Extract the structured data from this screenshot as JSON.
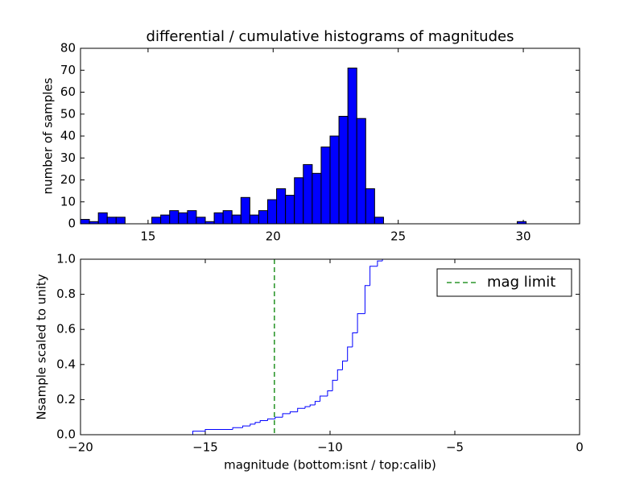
{
  "chart_data": [
    {
      "type": "histogram",
      "title": "differential / cumulative histograms of magnitudes",
      "y_label": "number of samples",
      "bins": [
        12.3,
        12.656,
        13.013,
        13.369,
        13.725,
        14.081,
        14.438,
        14.794,
        15.15,
        15.506,
        15.863,
        16.219,
        16.575,
        16.931,
        17.288,
        17.644,
        18.0,
        18.356,
        18.713,
        19.069,
        19.425,
        19.781,
        20.138,
        20.494,
        20.85,
        21.206,
        21.563,
        21.919,
        22.275,
        22.631,
        22.988,
        23.344,
        23.7,
        24.056,
        24.413,
        24.769,
        25.125,
        25.481,
        25.838,
        26.194,
        26.55,
        26.906,
        27.263,
        27.619,
        27.975,
        28.331,
        28.688,
        29.044,
        29.4,
        29.756,
        30.113,
        30.469,
        30.825,
        31.181,
        31.538,
        31.894,
        32.25
      ],
      "values": [
        2,
        1,
        5,
        3,
        3,
        0,
        0,
        0,
        3,
        4,
        6,
        5,
        6,
        3,
        1,
        5,
        6,
        4,
        12,
        4,
        6,
        11,
        16,
        13,
        21,
        27,
        23,
        35,
        40,
        49,
        71,
        48,
        16,
        3,
        0,
        0,
        0,
        0,
        0,
        0,
        0,
        0,
        0,
        0,
        0,
        0,
        0,
        0,
        0,
        1,
        0,
        0,
        0,
        0,
        0,
        0
      ],
      "color": "#0000ff",
      "xlim": [
        12.3,
        32.25
      ],
      "xticks": [
        15,
        20,
        25,
        30
      ],
      "ylim": [
        0,
        80
      ],
      "yticks": [
        0,
        10,
        20,
        30,
        40,
        50,
        60,
        70,
        80
      ]
    },
    {
      "type": "step",
      "x_label": "magnitude (bottom:isnt / top:calib)",
      "y_label": "Nsample scaled to unity",
      "x": [
        -20,
        -15.5,
        -15,
        -13.9,
        -13.5,
        -13.2,
        -13,
        -12.8,
        -12.5,
        -12.2,
        -11.9,
        -11.6,
        -11.3,
        -11,
        -10.8,
        -10.6,
        -10.4,
        -10.1,
        -9.9,
        -9.7,
        -9.5,
        -9.3,
        -9.1,
        -8.9,
        -8.6,
        -8.4,
        -8.1,
        -7.9
      ],
      "values": [
        0,
        0.02,
        0.03,
        0.04,
        0.05,
        0.06,
        0.07,
        0.08,
        0.09,
        0.1,
        0.12,
        0.13,
        0.15,
        0.16,
        0.17,
        0.19,
        0.22,
        0.25,
        0.31,
        0.37,
        0.42,
        0.5,
        0.58,
        0.69,
        0.85,
        0.96,
        0.99,
        1.0
      ],
      "color": "#0000ff",
      "reference_lines": [
        {
          "name": "mag limit",
          "x": -12.23,
          "color": "#008000"
        }
      ],
      "legend": "upper right",
      "xlim": [
        -20,
        0
      ],
      "xticks": [
        {
          "value": -20,
          "label": "−20"
        },
        {
          "value": -15,
          "label": "−15"
        },
        {
          "value": -10,
          "label": "−10"
        },
        {
          "value": -5,
          "label": "−5"
        },
        0
      ],
      "ylim": [
        0,
        1
      ],
      "yticks": [
        {
          "value": 0,
          "label": "0.0"
        },
        0.2,
        0.4,
        0.6,
        0.8,
        {
          "value": 1,
          "label": "1.0"
        }
      ]
    }
  ]
}
